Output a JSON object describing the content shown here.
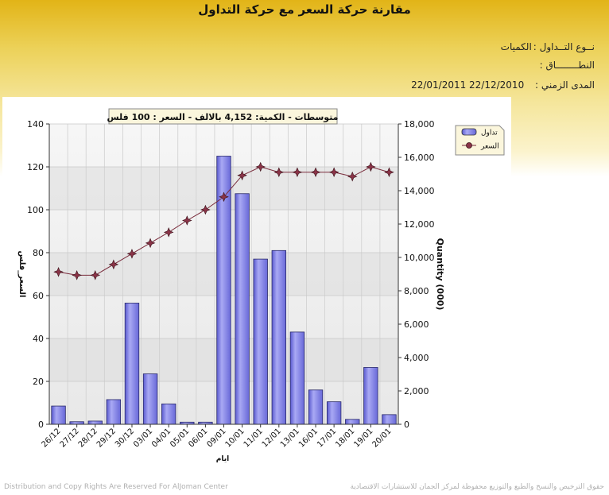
{
  "page": {
    "title": "مقارنة حركة السعر مع حركة التداول",
    "trade_type_label": "نــوع التــداول :",
    "trade_type_value": "الكميات",
    "range_label": "النطــــــــاق :",
    "range_value": "",
    "period_label": "المدى الزمني :",
    "period_value": "22/01/2011 22/12/2010",
    "footer_left": "Distribution and Copy Rights Are Reserved For AlJoman Center",
    "footer_right": "حقوق الترخيص والنسخ والطبع والتوزيع محفوظة لمركز الجمان للاستشارات الاقتصادية"
  },
  "chart_data": {
    "type": "bar",
    "title": "متوسطات - الكمية: 4,152 بالالف  -  السعر : 100 فلس",
    "xlabel": "ايام",
    "ylabel_left": "السعر_فلس",
    "ylabel_right": "Quantity (000)",
    "categories": [
      "26/12",
      "27/12",
      "28/12",
      "29/12",
      "30/12",
      "03/01",
      "04/01",
      "05/01",
      "06/01",
      "09/01",
      "10/01",
      "11/01",
      "12/01",
      "13/01",
      "16/01",
      "17/01",
      "18/01",
      "19/01",
      "20/01"
    ],
    "ylim_left": [
      0,
      140
    ],
    "yticks_left": [
      "0",
      "20",
      "40",
      "60",
      "80",
      "100",
      "120",
      "140"
    ],
    "ylim_right": [
      0,
      18000
    ],
    "yticks_right": [
      "0",
      "2,000",
      "4,000",
      "6,000",
      "8,000",
      "10,000",
      "12,000",
      "14,000",
      "16,000",
      "18,000"
    ],
    "grid": true,
    "legend_placement": "top-right",
    "series": [
      {
        "name": "تداول",
        "type": "bar",
        "axis": "left",
        "color": "#7b7be6",
        "values": [
          8.5,
          1.2,
          1.5,
          11.5,
          56.5,
          23.5,
          9.5,
          1,
          1,
          125,
          107.5,
          77,
          81,
          43,
          16,
          10.5,
          2.3,
          26.5,
          4.5
        ]
      },
      {
        "name": "السعر",
        "type": "line",
        "axis": "left",
        "color": "#7a2c3c",
        "values": [
          71,
          69.5,
          69.5,
          74.5,
          79.5,
          84.5,
          89.5,
          95,
          100,
          106,
          116,
          120,
          117.5,
          117.5,
          117.5,
          117.5,
          115.5,
          120,
          117.5
        ]
      }
    ]
  }
}
